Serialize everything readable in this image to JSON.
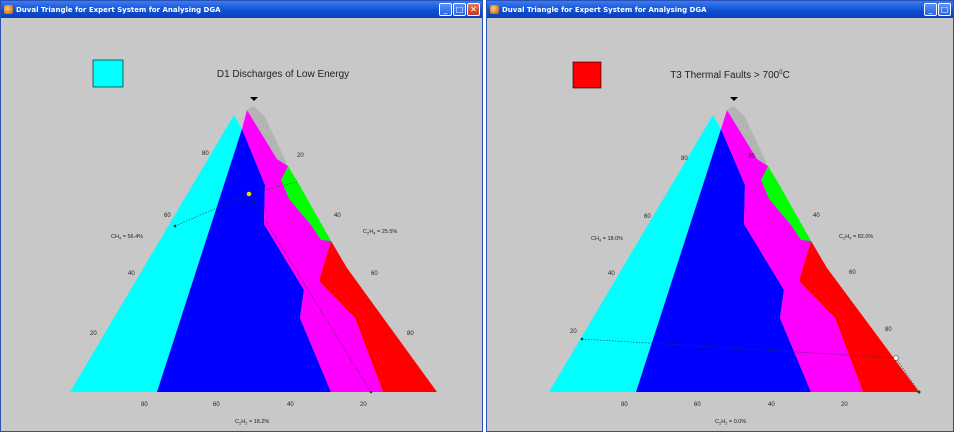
{
  "windows": [
    {
      "title": "Duval Triangle for Expert System for Analysing DGA",
      "buttons": [
        "minimize",
        "maximize",
        "close"
      ],
      "fault_label": "D1 Discharges of Low Energy",
      "fault_color": "#00ffff",
      "left_scale": [
        "80",
        "60",
        "40",
        "20"
      ],
      "right_scale": [
        "20",
        "40",
        "60",
        "80"
      ],
      "bottom_scale": [
        "80",
        "60",
        "40",
        "20"
      ],
      "reading_ch4": "CH",
      "reading_ch4_sub": "4",
      "reading_ch4_value": " = 56.4%",
      "reading_c2h4": "C",
      "reading_c2h4_sub1": "2",
      "reading_c2h4_mid": "H",
      "reading_c2h4_sub2": "4",
      "reading_c2h4_value": " = 25.5%",
      "reading_c2h2": "C",
      "reading_c2h2_sub1": "2",
      "reading_c2h2_mid": "H",
      "reading_c2h2_sub2": "2",
      "reading_c2h2_value": " = 18.2%"
    },
    {
      "title": "Duval Triangle for Expert System for Analysing DGA",
      "buttons": [
        "minimize",
        "maximize"
      ],
      "fault_label_main": "T3 Thermal Faults > 700",
      "fault_label_sup": "0",
      "fault_label_unit": "C",
      "fault_color": "#ff0000",
      "left_scale": [
        "80",
        "60",
        "40",
        "20"
      ],
      "right_scale": [
        "20",
        "40",
        "60",
        "80"
      ],
      "bottom_scale": [
        "80",
        "60",
        "40",
        "20"
      ],
      "reading_ch4": "CH",
      "reading_ch4_sub": "4",
      "reading_ch4_value": " = 18.0%",
      "reading_c2h4": "C",
      "reading_c2h4_sub1": "2",
      "reading_c2h4_mid": "H",
      "reading_c2h4_sub2": "4",
      "reading_c2h4_value": " = 82.0%",
      "reading_c2h2": "C",
      "reading_c2h2_sub1": "2",
      "reading_c2h2_mid": "H",
      "reading_c2h2_sub2": "2",
      "reading_c2h2_value": " = 0.0%"
    }
  ],
  "zone_colors": {
    "cyan": "#00ffff",
    "blue": "#0000ff",
    "magenta": "#ff00ff",
    "red": "#ff0000",
    "green": "#00ff00",
    "gray": "#b4b4b4"
  }
}
